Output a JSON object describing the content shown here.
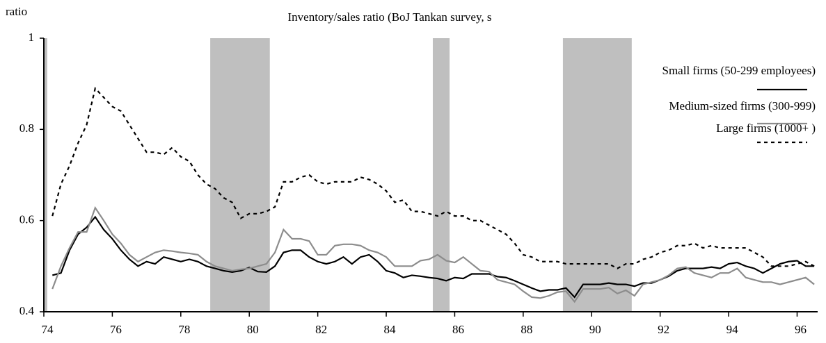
{
  "chart_data": {
    "type": "line",
    "title": "Inventory/sales ratio (BoJ Tankan survey, s",
    "ylabel": "ratio",
    "xlim": [
      74,
      96.6
    ],
    "ylim": [
      0.4,
      1
    ],
    "xticks": [
      74,
      76,
      78,
      80,
      82,
      84,
      86,
      88,
      90,
      92,
      94,
      96
    ],
    "yticks": [
      0.4,
      0.6,
      0.8,
      1
    ],
    "shaded_periods": [
      [
        74,
        74.1
      ],
      [
        78.86,
        80.6
      ],
      [
        85.36,
        85.85
      ],
      [
        89.16,
        91.17
      ]
    ],
    "shade_color": "#bfbfbf",
    "x": [
      74.25,
      74.5,
      74.75,
      75,
      75.25,
      75.5,
      75.75,
      76,
      76.25,
      76.5,
      76.75,
      77,
      77.25,
      77.5,
      77.75,
      78,
      78.25,
      78.5,
      78.75,
      79,
      79.25,
      79.5,
      79.75,
      80,
      80.25,
      80.5,
      80.75,
      81,
      81.25,
      81.5,
      81.75,
      82,
      82.25,
      82.5,
      82.75,
      83,
      83.25,
      83.5,
      83.75,
      84,
      84.25,
      84.5,
      84.75,
      85,
      85.25,
      85.5,
      85.75,
      86,
      86.25,
      86.5,
      86.75,
      87,
      87.25,
      87.5,
      87.75,
      88,
      88.25,
      88.5,
      88.75,
      89,
      89.25,
      89.5,
      89.75,
      90,
      90.25,
      90.5,
      90.75,
      91,
      91.25,
      91.5,
      91.75,
      92,
      92.25,
      92.5,
      92.75,
      93,
      93.25,
      93.5,
      93.75,
      94,
      94.25,
      94.5,
      94.75,
      95,
      95.25,
      95.5,
      95.75,
      96,
      96.25,
      96.5
    ],
    "series": [
      {
        "name": "Small firms (50-299 employees)",
        "color": "#000000",
        "dash": "solid",
        "values": [
          0.48,
          0.485,
          0.535,
          0.57,
          0.585,
          0.608,
          0.58,
          0.56,
          0.535,
          0.515,
          0.5,
          0.51,
          0.505,
          0.52,
          0.515,
          0.51,
          0.515,
          0.51,
          0.5,
          0.495,
          0.49,
          0.487,
          0.49,
          0.497,
          0.488,
          0.487,
          0.5,
          0.53,
          0.535,
          0.535,
          0.52,
          0.51,
          0.505,
          0.51,
          0.52,
          0.505,
          0.52,
          0.525,
          0.51,
          0.49,
          0.485,
          0.475,
          0.48,
          0.478,
          0.475,
          0.473,
          0.468,
          0.475,
          0.473,
          0.483,
          0.483,
          0.483,
          0.477,
          0.475,
          0.468,
          0.46,
          0.452,
          0.445,
          0.448,
          0.448,
          0.452,
          0.432,
          0.46,
          0.46,
          0.46,
          0.463,
          0.46,
          0.46,
          0.456,
          0.463,
          0.463,
          0.47,
          0.478,
          0.49,
          0.495,
          0.495,
          0.495,
          0.498,
          0.495,
          0.505,
          0.508,
          0.5,
          0.495,
          0.485,
          0.495,
          0.505,
          0.51,
          0.512,
          0.5,
          0.5
        ]
      },
      {
        "name": "Medium-sized firms (300-999)",
        "color": "#8c8c8c",
        "dash": "solid",
        "values": [
          0.45,
          0.5,
          0.54,
          0.575,
          0.575,
          0.628,
          0.6,
          0.57,
          0.55,
          0.525,
          0.51,
          0.52,
          0.53,
          0.535,
          0.533,
          0.53,
          0.528,
          0.525,
          0.51,
          0.5,
          0.495,
          0.49,
          0.493,
          0.495,
          0.5,
          0.505,
          0.53,
          0.58,
          0.56,
          0.56,
          0.555,
          0.525,
          0.525,
          0.545,
          0.548,
          0.548,
          0.545,
          0.535,
          0.53,
          0.52,
          0.5,
          0.5,
          0.5,
          0.512,
          0.515,
          0.525,
          0.512,
          0.508,
          0.52,
          0.505,
          0.49,
          0.488,
          0.47,
          0.465,
          0.46,
          0.445,
          0.432,
          0.43,
          0.435,
          0.443,
          0.445,
          0.422,
          0.45,
          0.45,
          0.45,
          0.453,
          0.44,
          0.447,
          0.435,
          0.46,
          0.465,
          0.47,
          0.48,
          0.495,
          0.498,
          0.485,
          0.48,
          0.475,
          0.485,
          0.485,
          0.495,
          0.475,
          0.47,
          0.465,
          0.465,
          0.46,
          0.465,
          0.47,
          0.475,
          0.46
        ]
      },
      {
        "name": "Large firms (1000+ )",
        "color": "#000000",
        "dash": "dotted",
        "values": [
          0.61,
          0.68,
          0.72,
          0.77,
          0.81,
          0.89,
          0.87,
          0.85,
          0.84,
          0.81,
          0.78,
          0.75,
          0.75,
          0.745,
          0.76,
          0.74,
          0.73,
          0.7,
          0.68,
          0.67,
          0.65,
          0.64,
          0.605,
          0.615,
          0.615,
          0.62,
          0.63,
          0.685,
          0.685,
          0.695,
          0.7,
          0.685,
          0.68,
          0.685,
          0.685,
          0.685,
          0.695,
          0.69,
          0.68,
          0.665,
          0.64,
          0.645,
          0.62,
          0.62,
          0.615,
          0.61,
          0.62,
          0.61,
          0.61,
          0.6,
          0.6,
          0.59,
          0.58,
          0.57,
          0.55,
          0.525,
          0.52,
          0.51,
          0.51,
          0.51,
          0.505,
          0.505,
          0.505,
          0.505,
          0.505,
          0.505,
          0.495,
          0.505,
          0.505,
          0.515,
          0.52,
          0.53,
          0.535,
          0.545,
          0.545,
          0.55,
          0.54,
          0.545,
          0.54,
          0.54,
          0.54,
          0.54,
          0.53,
          0.52,
          0.5,
          0.5,
          0.5,
          0.505,
          0.51,
          0.5
        ]
      }
    ]
  }
}
